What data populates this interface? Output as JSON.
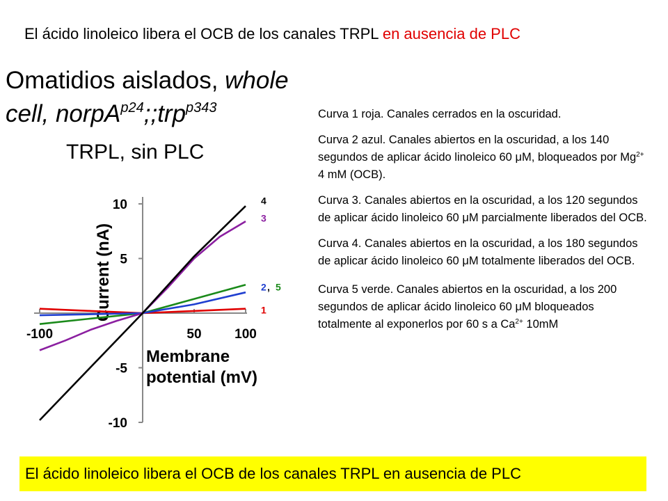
{
  "top_title": {
    "text": "El ácido linoleico libera el OCB de los canales TRPL ",
    "highlight": "en ausencia de PLC",
    "highlight_color": "#e00000"
  },
  "heading": {
    "line1": "Omatidios aislados, ",
    "line1_italic": "whole",
    "line2_a": "cell, norpA",
    "sup1": "p24",
    "line2_b": ";;trp",
    "sup2": "p343"
  },
  "subheading": "TRPL, sin PLC",
  "notes": [
    {
      "text": "Curva 1 roja. Canales cerrados en la oscuridad."
    },
    {
      "a": "Curva 2 azul. Canales abiertos en la oscuridad, a los 140 segundos de aplicar ácido linoleico 60 ",
      "unit": "μM",
      "b": ", bloqueados por Mg",
      "sup": "2+",
      "c": " 4 mM (OCB)."
    },
    {
      "a": "Curva 3. Canales abiertos en la oscuridad, a los 120 segundos de aplicar ácido linoleico 60 ",
      "unit": "μM",
      "b": " parcialmente liberados del OCB."
    },
    {
      "a": "Curva 4. Canales abiertos en la oscuridad, a los 180 segundos de aplicar ácido linoleico 60 ",
      "unit": "μM",
      "b": " totalmente liberados del OCB."
    },
    {
      "a": "Curva 5 verde. Canales abiertos en la oscuridad, a los 200 segundos de aplicar ácido linoleico 60 ",
      "unit": "μM",
      "b": " bloqueados totalmente al exponerlos por 60 s a Ca",
      "sup": "2+",
      "c": " 10mM"
    }
  ],
  "bottom_banner": {
    "text": "El ácido linoleico libera el OCB de los canales TRPL en ausencia de PLC",
    "background": "#ffff00"
  },
  "chart_data": {
    "type": "line",
    "xlabel_line1": "Membrane",
    "xlabel_line2": "potential (mV)",
    "ylabel": "Current (nA)",
    "xlim": [
      -100,
      100
    ],
    "ylim": [
      -10,
      10
    ],
    "x_ticks": [
      -100,
      50,
      100
    ],
    "y_ticks": [
      10,
      5,
      -5,
      -10
    ],
    "grid": false,
    "series": [
      {
        "name": "1",
        "color": "#e00000",
        "x": [
          -100,
          -50,
          0,
          50,
          100
        ],
        "y": [
          0.4,
          0.2,
          0.0,
          0.2,
          0.4
        ]
      },
      {
        "name": "2",
        "color": "#1f3fd0",
        "x": [
          -100,
          -50,
          0,
          50,
          100
        ],
        "y": [
          -0.2,
          -0.1,
          0.0,
          0.8,
          1.9
        ]
      },
      {
        "name": "3",
        "color": "#8b1fa0",
        "x": [
          -100,
          -75,
          -50,
          -25,
          0,
          25,
          50,
          75,
          100
        ],
        "y": [
          -3.4,
          -2.5,
          -1.5,
          -0.7,
          0.0,
          2.4,
          5.0,
          7.0,
          8.4
        ]
      },
      {
        "name": "4",
        "color": "#000000",
        "x": [
          -100,
          -50,
          0,
          50,
          100
        ],
        "y": [
          -9.8,
          -4.9,
          0.0,
          5.2,
          9.8
        ]
      },
      {
        "name": "5",
        "color": "#1a8a1a",
        "x": [
          -100,
          -50,
          0,
          50,
          100
        ],
        "y": [
          -1.0,
          -0.5,
          0.0,
          1.3,
          2.6
        ]
      }
    ],
    "series_label_groups": [
      {
        "color": "#000000",
        "text": "4",
        "y": 10.3
      },
      {
        "color": "#8b1fa0",
        "text": "3",
        "y": 8.7
      },
      {
        "color": "#1f3fd0",
        "text": "2",
        "y": 2.4,
        "sep": ", ",
        "text2": "5",
        "color2": "#1a8a1a"
      },
      {
        "color": "#e00000",
        "text": "1",
        "y": 0.3
      }
    ]
  }
}
